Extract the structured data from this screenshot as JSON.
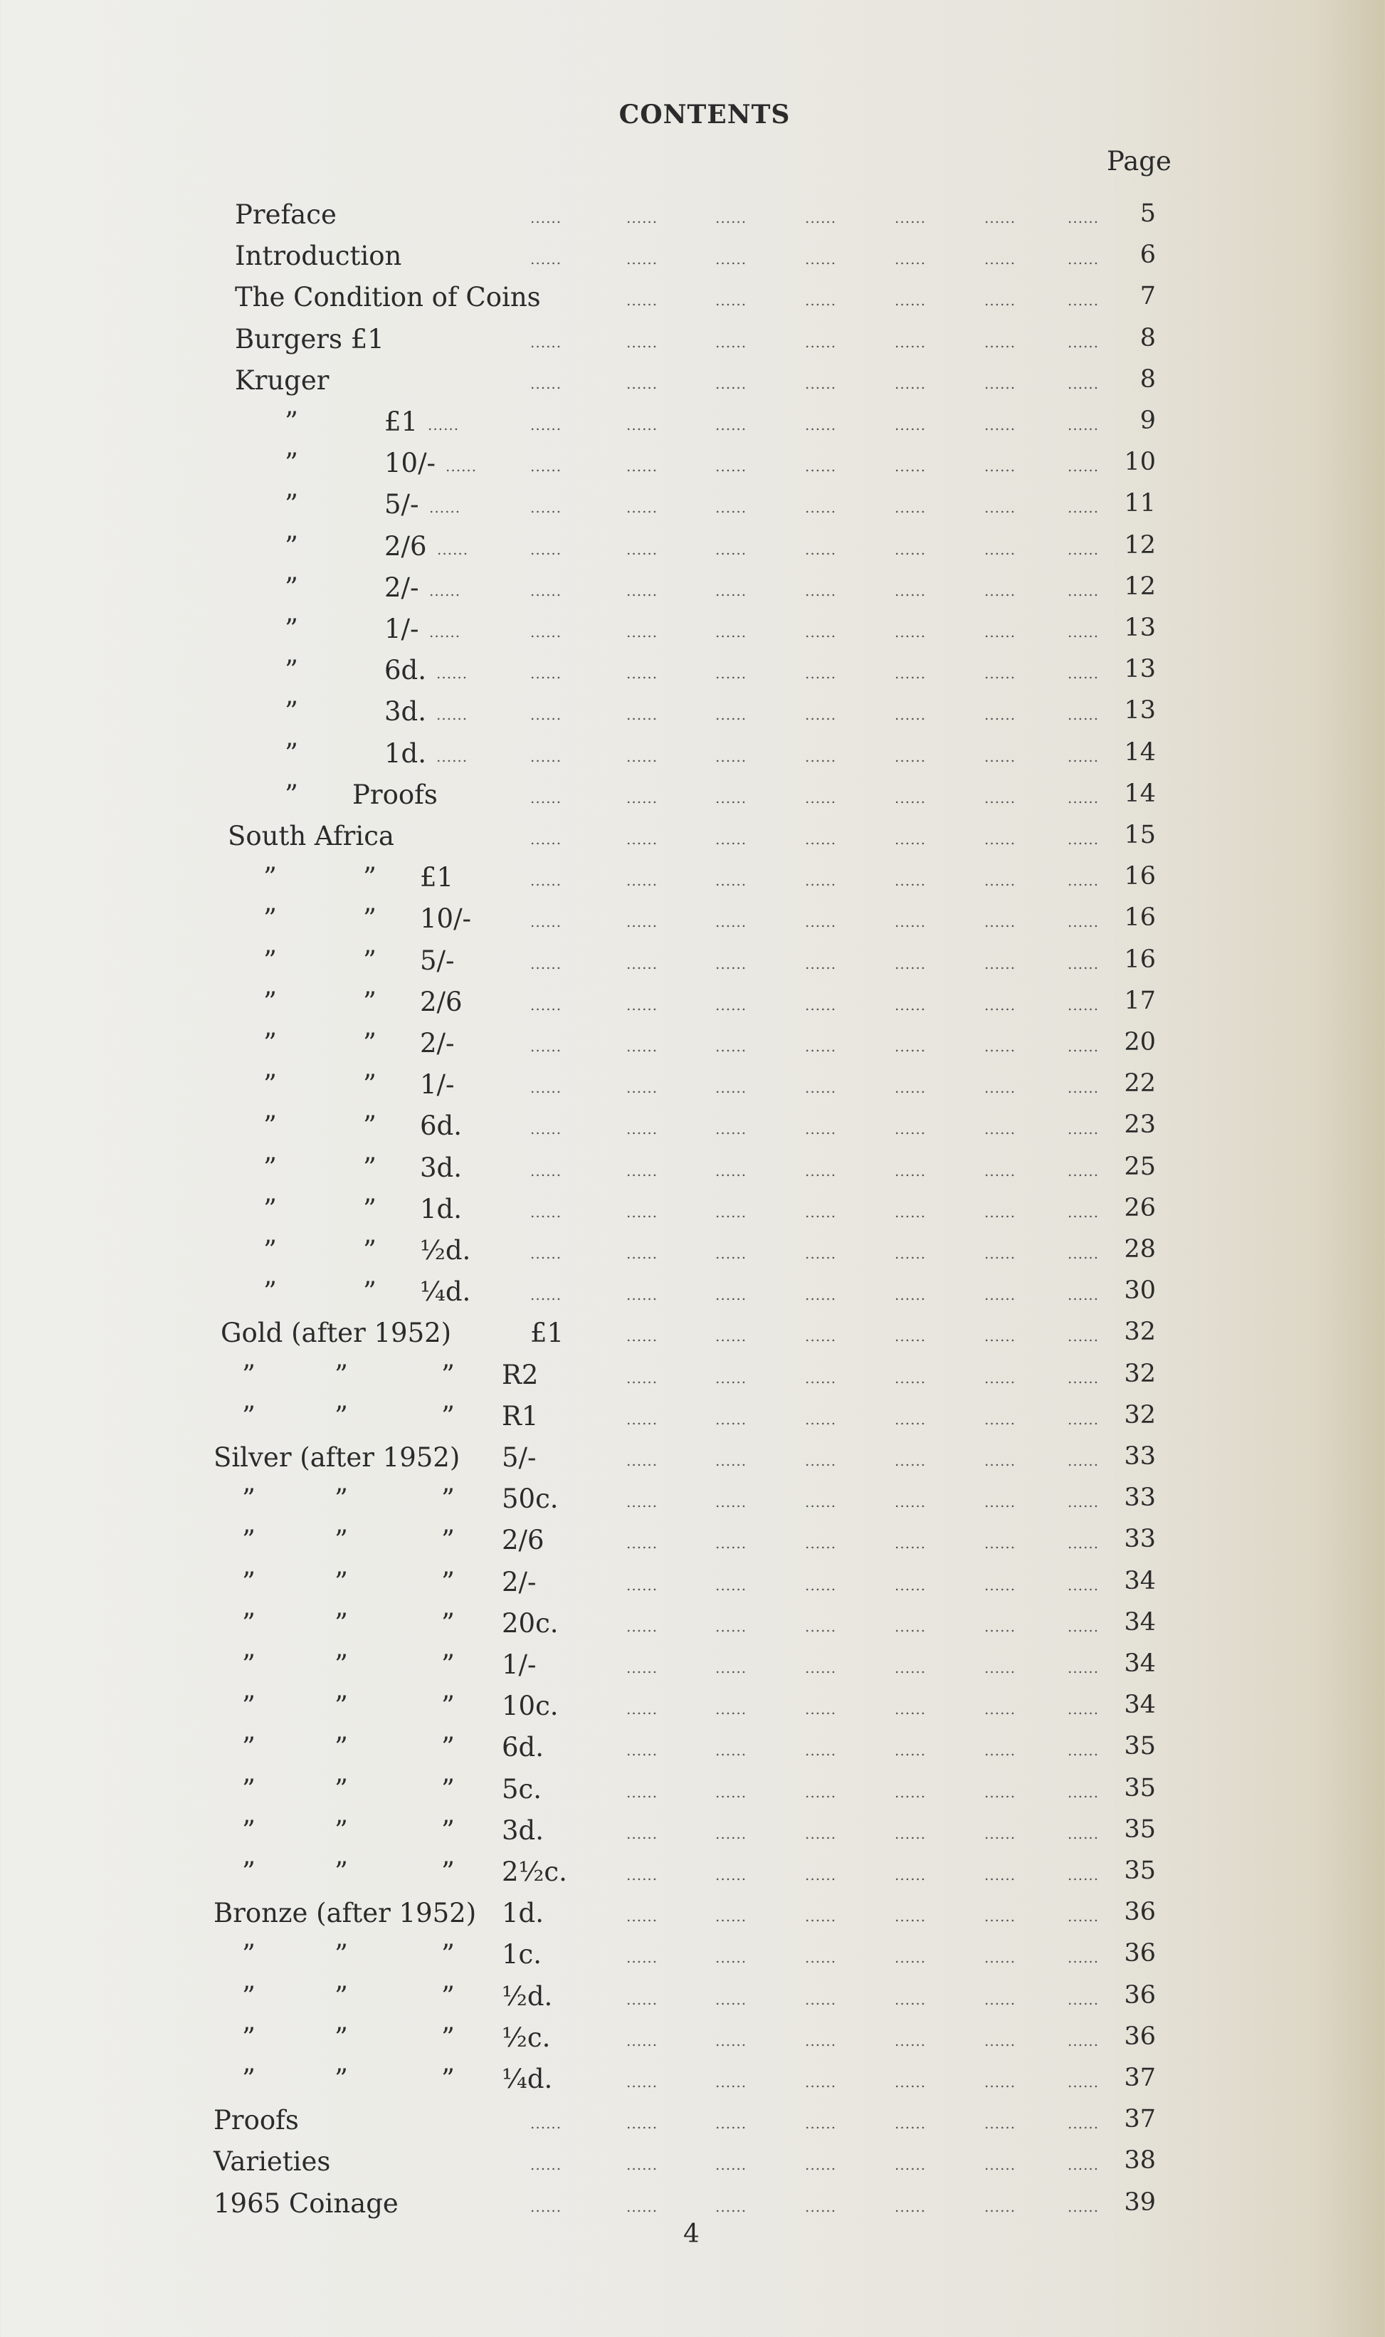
{
  "title": "CONTENTS",
  "page_header": "Page",
  "folio": "4",
  "ditto": "”",
  "leader": "......",
  "entries": [
    {
      "kind": "top",
      "label": "Preface",
      "page": "5"
    },
    {
      "kind": "top",
      "label": "Introduction",
      "page": "6"
    },
    {
      "kind": "top",
      "label": "The Condition of Coins",
      "page": "7"
    },
    {
      "kind": "top",
      "label": "Burgers £1",
      "page": "8"
    },
    {
      "kind": "top",
      "label": "Kruger",
      "page": "8"
    },
    {
      "kind": "k",
      "label": "£1",
      "page": "9"
    },
    {
      "kind": "k",
      "label": "10/-",
      "page": "10"
    },
    {
      "kind": "k",
      "label": "5/-",
      "page": "11"
    },
    {
      "kind": "k",
      "label": "2/6",
      "page": "12"
    },
    {
      "kind": "k",
      "label": "2/-",
      "page": "12"
    },
    {
      "kind": "k",
      "label": "1/-",
      "page": "13"
    },
    {
      "kind": "k",
      "label": "6d.",
      "page": "13"
    },
    {
      "kind": "k",
      "label": "3d.",
      "page": "13"
    },
    {
      "kind": "k",
      "label": "1d.",
      "page": "14"
    },
    {
      "kind": "kp",
      "label": "Proofs",
      "page": "14"
    },
    {
      "kind": "top",
      "label": "South Africa",
      "page": "15"
    },
    {
      "kind": "sa",
      "label": "£1",
      "page": "16"
    },
    {
      "kind": "sa",
      "label": "10/-",
      "page": "16"
    },
    {
      "kind": "sa",
      "label": "5/-",
      "page": "16"
    },
    {
      "kind": "sa",
      "label": "2/6",
      "page": "17"
    },
    {
      "kind": "sa",
      "label": "2/-",
      "page": "20"
    },
    {
      "kind": "sa",
      "label": "1/-",
      "page": "22"
    },
    {
      "kind": "sa",
      "label": "6d.",
      "page": "23"
    },
    {
      "kind": "sa",
      "label": "3d.",
      "page": "25"
    },
    {
      "kind": "sa",
      "label": "1d.",
      "page": "26"
    },
    {
      "kind": "sa",
      "label": "½d.",
      "page": "28"
    },
    {
      "kind": "sa",
      "label": "¼d.",
      "page": "30"
    },
    {
      "kind": "head",
      "label": "Gold (after 1952)",
      "denom": "£1",
      "page": "32"
    },
    {
      "kind": "sub",
      "label": "R2",
      "page": "32"
    },
    {
      "kind": "sub",
      "label": "R1",
      "page": "32"
    },
    {
      "kind": "head",
      "label": "Silver (after 1952)",
      "denom": "5/-",
      "page": "33"
    },
    {
      "kind": "sub",
      "label": "50c.",
      "page": "33"
    },
    {
      "kind": "sub",
      "label": "2/6",
      "page": "33"
    },
    {
      "kind": "sub",
      "label": "2/-",
      "page": "34"
    },
    {
      "kind": "sub",
      "label": "20c.",
      "page": "34"
    },
    {
      "kind": "sub",
      "label": "1/-",
      "page": "34"
    },
    {
      "kind": "sub",
      "label": "10c.",
      "page": "34"
    },
    {
      "kind": "sub",
      "label": "6d.",
      "page": "35"
    },
    {
      "kind": "sub",
      "label": "5c.",
      "page": "35"
    },
    {
      "kind": "sub",
      "label": "3d.",
      "page": "35"
    },
    {
      "kind": "sub",
      "label": "2½c.",
      "page": "35"
    },
    {
      "kind": "head",
      "label": "Bronze (after 1952)",
      "denom": "1d.",
      "page": "36"
    },
    {
      "kind": "sub",
      "label": "1c.",
      "page": "36"
    },
    {
      "kind": "sub",
      "label": "½d.",
      "page": "36"
    },
    {
      "kind": "sub",
      "label": "½c.",
      "page": "36"
    },
    {
      "kind": "sub",
      "label": "¼d.",
      "page": "37"
    },
    {
      "kind": "top",
      "label": "Proofs",
      "page": "37"
    },
    {
      "kind": "top",
      "label": "Varieties",
      "page": "38"
    },
    {
      "kind": "top",
      "label": "1965 Coinage",
      "page": "39"
    }
  ]
}
